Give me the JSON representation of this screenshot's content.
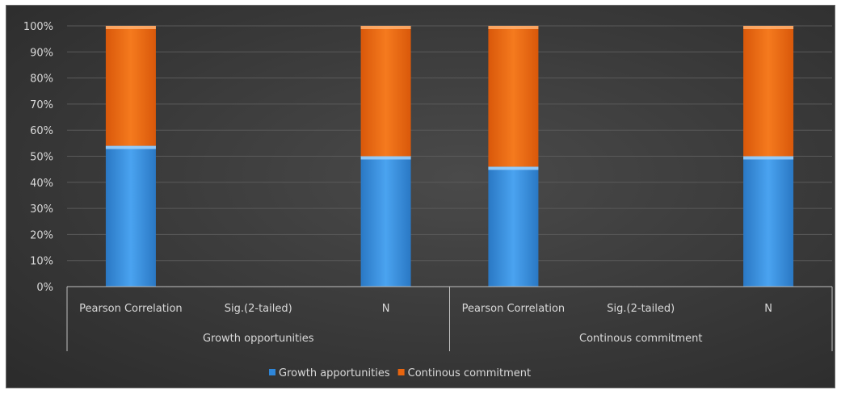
{
  "chart_data": {
    "type": "bar",
    "stacked": true,
    "percent": true,
    "categories": [
      "Pearson Correlation",
      "Sig.(2-tailed)",
      "N",
      "Pearson Correlation",
      "Sig.(2-tailed)",
      "N"
    ],
    "groups": [
      "Growth opportunities",
      "Continous commitment"
    ],
    "group_of_category": [
      0,
      0,
      0,
      1,
      1,
      1
    ],
    "series": [
      {
        "name": "Growth apportunities",
        "values": [
          54,
          0,
          50,
          46,
          0,
          50
        ],
        "color": "#2e86d9"
      },
      {
        "name": "Continous commitment",
        "values": [
          46,
          0,
          50,
          54,
          0,
          50
        ],
        "color": "#e8650f"
      }
    ],
    "y_ticks": [
      "0%",
      "10%",
      "20%",
      "30%",
      "40%",
      "50%",
      "60%",
      "70%",
      "80%",
      "90%",
      "100%"
    ],
    "ylim": [
      0,
      100
    ],
    "grid": true,
    "legend": "bottom",
    "background": "#3a3a3a"
  }
}
